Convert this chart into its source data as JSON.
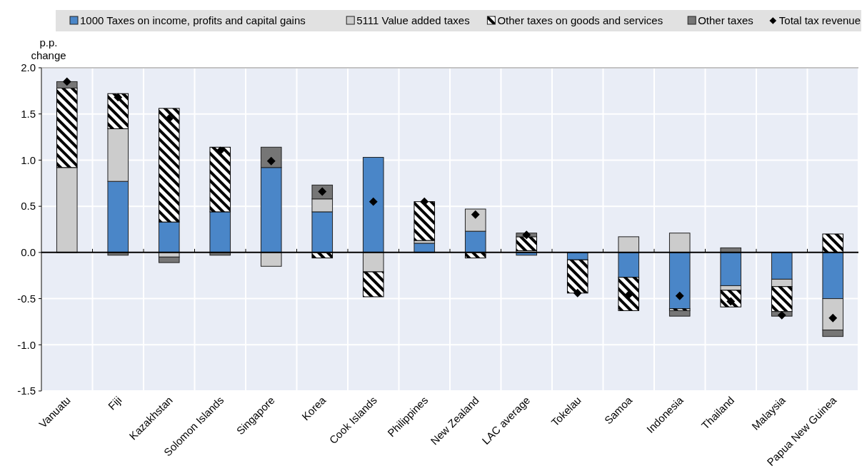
{
  "chart_data": {
    "type": "bar",
    "stacked": true,
    "ylabel": "p.p. change",
    "categories": [
      "Vanuatu",
      "Fiji",
      "Kazakhstan",
      "Solomon Islands",
      "Singapore",
      "Korea",
      "Cook Islands",
      "Philippines",
      "New Zealand",
      "LAC average",
      "Tokelau",
      "Samoa",
      "Indonesia",
      "Thailand",
      "Malaysia",
      "Papua New Guinea"
    ],
    "ylim": [
      -1.5,
      2.0
    ],
    "yticks": [
      {
        "value": -1.5,
        "label": "-1.5"
      },
      {
        "value": -1.0,
        "label": "-1.0"
      },
      {
        "value": -0.5,
        "label": "-0.5"
      },
      {
        "value": 0,
        "label": "0.0"
      },
      {
        "value": 0.5,
        "label": "0.5"
      },
      {
        "value": 1.0,
        "label": "1.0"
      },
      {
        "value": 1.5,
        "label": "1.5"
      },
      {
        "value": 2.0,
        "label": "2.0"
      }
    ],
    "grid": true,
    "legend": "top",
    "series": [
      {
        "name": "1000 Taxes on income, profits and capital gains",
        "color": "#4a86c8",
        "values": [
          0,
          0.77,
          0.33,
          0.44,
          0.92,
          0.44,
          1.03,
          0.1,
          0.23,
          -0.03,
          -0.08,
          -0.27,
          -0.61,
          -0.36,
          -0.29,
          -0.5
        ]
      },
      {
        "name": "5111 Value added taxes",
        "color": "#cccccc",
        "values": [
          0.92,
          0.57,
          -0.05,
          0,
          -0.15,
          0.14,
          -0.21,
          0.03,
          0.24,
          0.02,
          0,
          0.17,
          0.21,
          -0.05,
          -0.08,
          -0.34
        ]
      },
      {
        "name": "Other taxes on goods and services",
        "color": "#000000",
        "values": [
          0.86,
          0.38,
          1.23,
          0.7,
          0,
          -0.06,
          -0.27,
          0.42,
          -0.06,
          0.15,
          -0.36,
          -0.36,
          -0.02,
          -0.18,
          -0.27,
          0.2
        ]
      },
      {
        "name": "Other taxes",
        "color": "#767676",
        "values": [
          0.07,
          -0.03,
          -0.06,
          -0.03,
          0.22,
          0.15,
          0,
          0,
          0,
          0.04,
          0,
          0,
          -0.06,
          0.05,
          -0.05,
          -0.07
        ]
      },
      {
        "name": "Total tax revenue",
        "type": "scatter",
        "marker": "diamond",
        "color": "#000000",
        "x": [
          "Vanuatu",
          "Fiji",
          "Kazakhstan",
          "Solomon Islands",
          "Singapore",
          "Korea",
          "Cook Islands",
          "Philippines",
          "New Zealand",
          "LAC average",
          "Tokelau",
          "Samoa",
          "Indonesia",
          "Thailand",
          "Malaysia",
          "Papua New Guinea"
        ],
        "values": [
          1.85,
          1.68,
          1.45,
          1.1,
          0.99,
          0.66,
          0.55,
          0.55,
          0.41,
          0.19,
          -0.44,
          -0.46,
          -0.47,
          -0.53,
          -0.68,
          -0.71
        ]
      }
    ]
  }
}
